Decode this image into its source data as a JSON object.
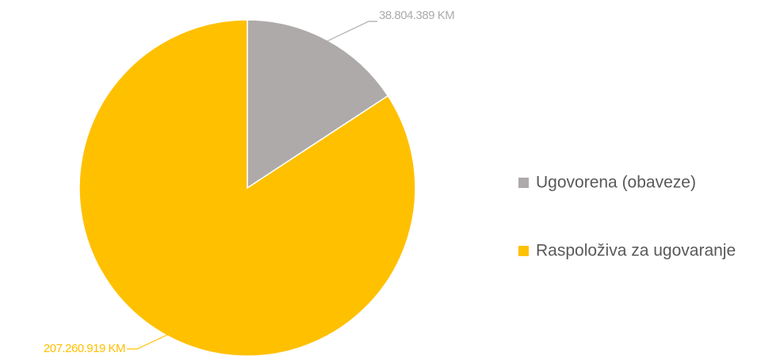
{
  "chart_data": {
    "type": "pie",
    "categories": [
      "Ugovorena (obaveze)",
      "Raspoloživa za ugovaranje"
    ],
    "values": [
      38804389,
      207260919
    ],
    "value_labels": [
      "38.804.389 KM",
      "207.260.919 KM"
    ],
    "colors": [
      "#aeaaaa",
      "#ffc000"
    ],
    "legend": "right"
  }
}
